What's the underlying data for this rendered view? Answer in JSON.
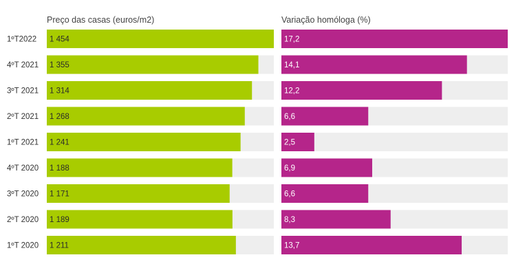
{
  "chart_data": [
    {
      "type": "bar",
      "orientation": "horizontal",
      "title": "Preço das casas (euros/m2)",
      "categories": [
        "1ºT2022",
        "4ºT 2021",
        "3ºT 2021",
        "2ºT 2021",
        "1ºT 2021",
        "4ºT 2020",
        "3ºT 2020",
        "2ºT 2020",
        "1ºT 2020"
      ],
      "values": [
        1454,
        1355,
        1314,
        1268,
        1241,
        1188,
        1171,
        1189,
        1211
      ],
      "value_labels": [
        "1 454",
        "1 355",
        "1 314",
        "1 268",
        "1 241",
        "1 188",
        "1 171",
        "1 189",
        "1 211"
      ],
      "xlim": [
        0,
        1454
      ],
      "color": "#a8cc00",
      "track_color": "#eeeeee"
    },
    {
      "type": "bar",
      "orientation": "horizontal",
      "title": "Variação homóloga (%)",
      "categories": [
        "1ºT2022",
        "4ºT 2021",
        "3ºT 2021",
        "2ºT 2021",
        "1ºT 2021",
        "4ºT 2020",
        "3ºT 2020",
        "2ºT 2020",
        "1ºT 2020"
      ],
      "values": [
        17.2,
        14.1,
        12.2,
        6.6,
        2.5,
        6.9,
        6.6,
        8.3,
        13.7
      ],
      "value_labels": [
        "17,2",
        "14,1",
        "12,2",
        "6,6",
        "2,5",
        "6,9",
        "6,6",
        "8,3",
        "13,7"
      ],
      "xlim": [
        0,
        17.2
      ],
      "color": "#b5258a",
      "track_color": "#eeeeee"
    }
  ]
}
